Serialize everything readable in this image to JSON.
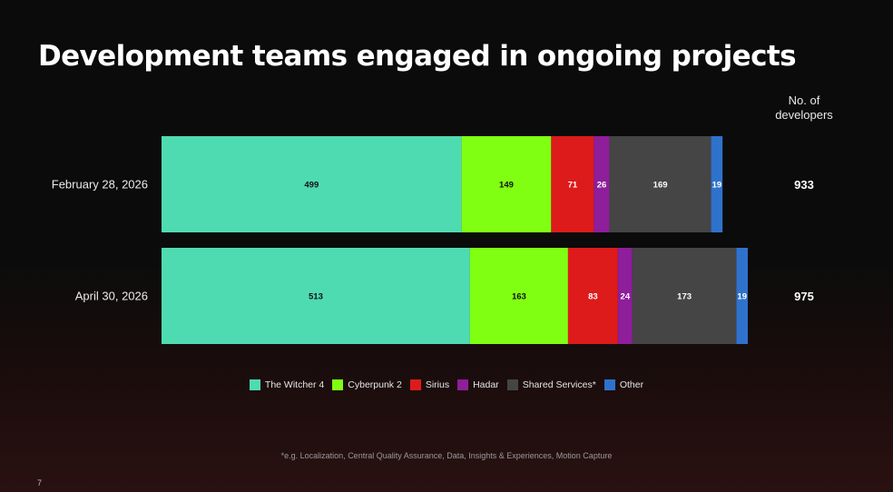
{
  "title": "Development teams engaged in ongoing projects",
  "column_header": {
    "line1": "No. of",
    "line2": "developers"
  },
  "footnote": "*e.g. Localization, Central Quality Assurance, Data, Insights & Experiences, Motion Capture",
  "page_number": "7",
  "chart_data": {
    "type": "bar",
    "orientation": "horizontal",
    "stacked": true,
    "categories": [
      "February 28, 2026",
      "April 30, 2026"
    ],
    "series": [
      {
        "name": "The Witcher 4",
        "values": [
          499,
          513
        ],
        "color": "#4fdbb2",
        "label_color": "#111111"
      },
      {
        "name": "Cyberpunk 2",
        "values": [
          149,
          163
        ],
        "color": "#80ff12",
        "label_color": "#111111"
      },
      {
        "name": "Sirius",
        "values": [
          71,
          83
        ],
        "color": "#dd1b1b",
        "label_color": "#ffffff"
      },
      {
        "name": "Hadar",
        "values": [
          26,
          24
        ],
        "color": "#8e1e9a",
        "label_color": "#ffffff"
      },
      {
        "name": "Shared Services*",
        "values": [
          169,
          173
        ],
        "color": "#454545",
        "label_color": "#ffffff"
      },
      {
        "name": "Other",
        "values": [
          19,
          19
        ],
        "color": "#2f72cc",
        "label_color": "#ffffff"
      }
    ],
    "totals": [
      "933",
      "975"
    ],
    "xlim": [
      0,
      975
    ],
    "grid": false,
    "legend_position": "bottom"
  }
}
